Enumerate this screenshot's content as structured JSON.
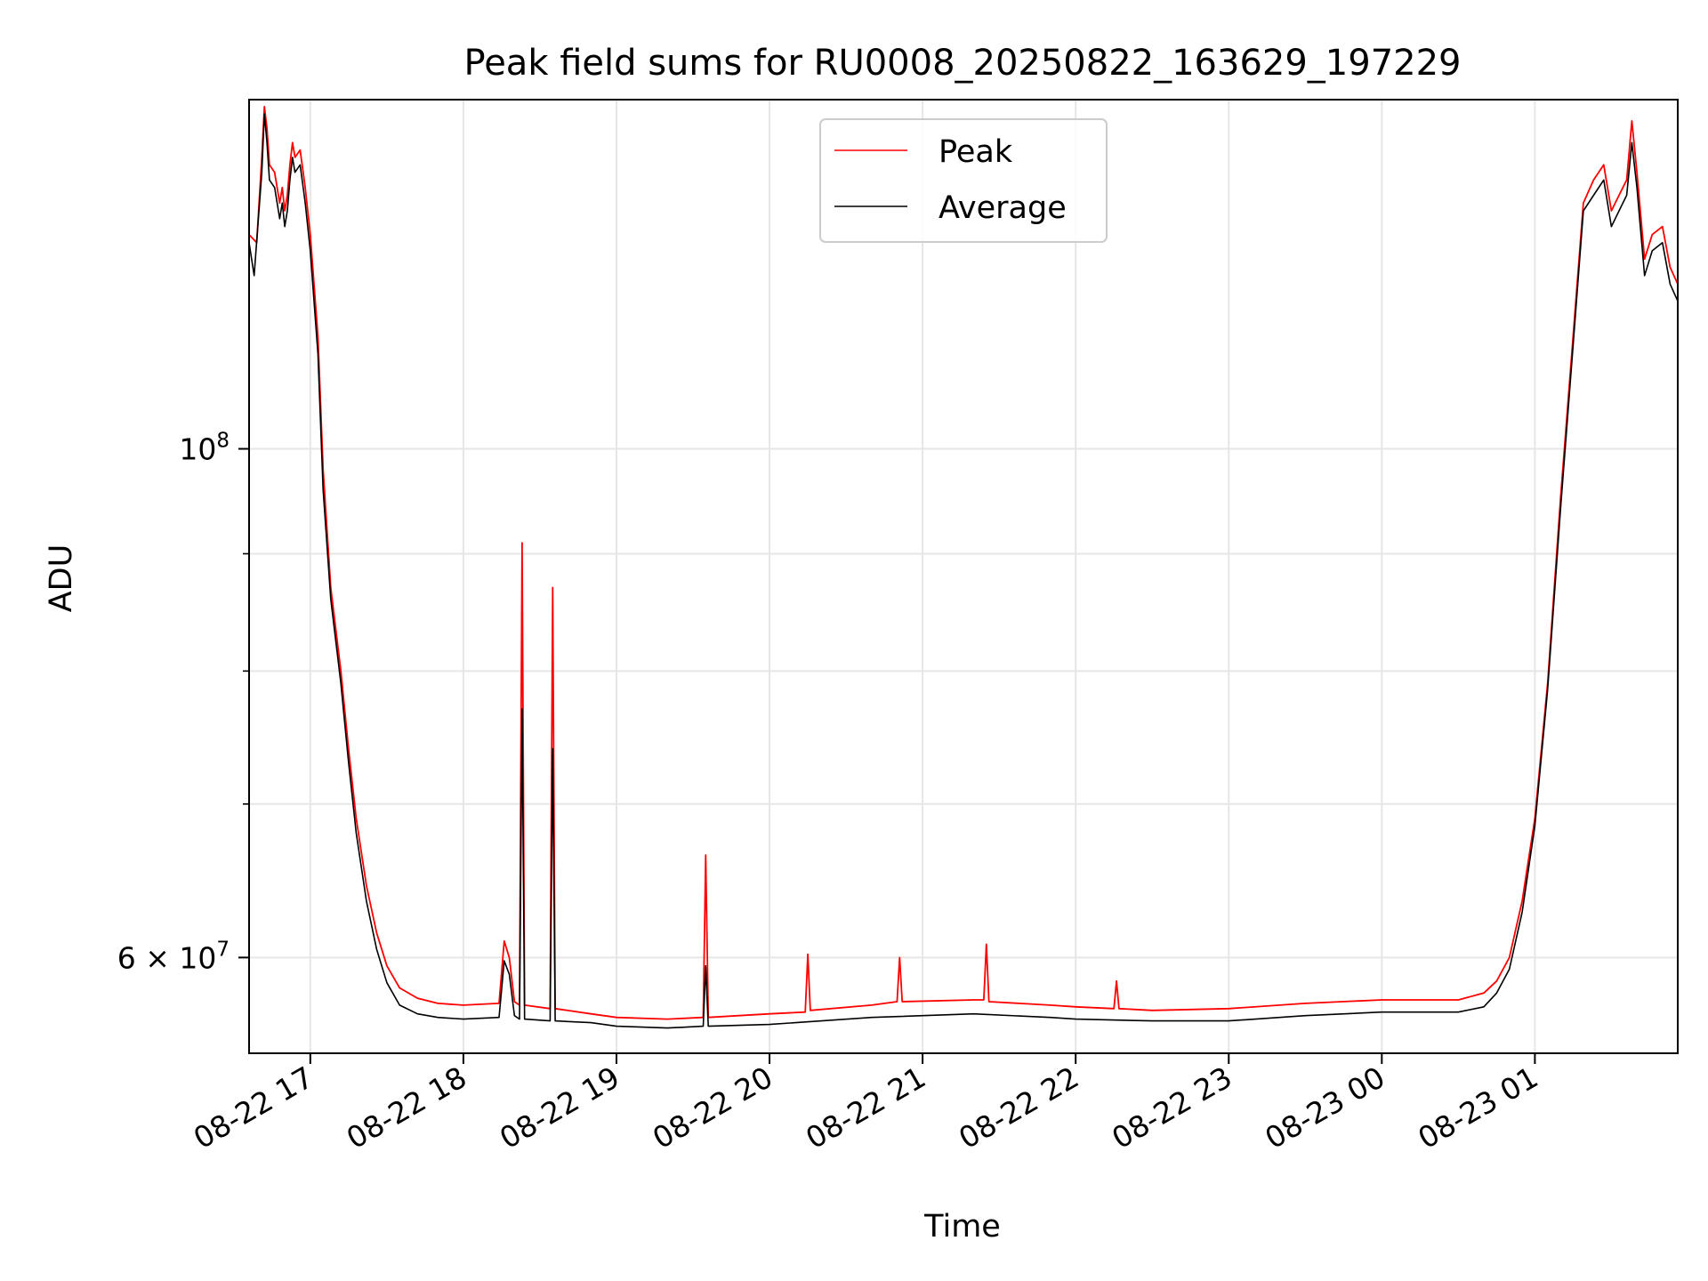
{
  "chart_data": {
    "type": "line",
    "title": "Peak field sums for RU0008_20250822_163629_197229",
    "xlabel": "Time",
    "ylabel": "ADU",
    "y_scale": "log",
    "x_range": [
      "2025-08-22 16:36",
      "2025-08-23 01:56"
    ],
    "ylim": [
      54500000,
      142000000
    ],
    "grid": true,
    "legend_position": "top-center",
    "x_ticks": [
      {
        "time": "2025-08-22 17:00",
        "label": "08-22 17"
      },
      {
        "time": "2025-08-22 18:00",
        "label": "08-22 18"
      },
      {
        "time": "2025-08-22 19:00",
        "label": "08-22 19"
      },
      {
        "time": "2025-08-22 20:00",
        "label": "08-22 20"
      },
      {
        "time": "2025-08-22 21:00",
        "label": "08-22 21"
      },
      {
        "time": "2025-08-22 22:00",
        "label": "08-22 22"
      },
      {
        "time": "2025-08-22 23:00",
        "label": "08-22 23"
      },
      {
        "time": "2025-08-23 00:00",
        "label": "08-23 00"
      },
      {
        "time": "2025-08-23 01:00",
        "label": "08-23 01"
      }
    ],
    "y_ticks": [
      {
        "value": 100000000,
        "base": "10",
        "exp": "8",
        "mantissa": ""
      },
      {
        "value": 60000000,
        "base": "10",
        "exp": "7",
        "mantissa": "6"
      }
    ],
    "y_minor_ticks": [
      70000000,
      80000000,
      90000000
    ],
    "series": [
      {
        "name": "Peak",
        "color": "#ff0000",
        "points": [
          [
            "2025-08-22 16:36",
            124000000
          ],
          [
            "2025-08-22 16:39",
            123000000
          ],
          [
            "2025-08-22 16:41",
            134000000
          ],
          [
            "2025-08-22 16:42",
            141000000
          ],
          [
            "2025-08-22 16:43",
            138000000
          ],
          [
            "2025-08-22 16:44",
            133000000
          ],
          [
            "2025-08-22 16:46",
            132000000
          ],
          [
            "2025-08-22 16:48",
            128000000
          ],
          [
            "2025-08-22 16:49",
            130000000
          ],
          [
            "2025-08-22 16:50",
            127000000
          ],
          [
            "2025-08-22 16:51",
            129000000
          ],
          [
            "2025-08-22 16:52",
            133000000
          ],
          [
            "2025-08-22 16:53",
            136000000
          ],
          [
            "2025-08-22 16:54",
            134000000
          ],
          [
            "2025-08-22 16:56",
            135000000
          ],
          [
            "2025-08-22 16:58",
            130000000
          ],
          [
            "2025-08-22 17:00",
            124000000
          ],
          [
            "2025-08-22 17:03",
            112000000
          ],
          [
            "2025-08-22 17:05",
            98000000
          ],
          [
            "2025-08-22 17:08",
            87000000
          ],
          [
            "2025-08-22 17:12",
            80000000
          ],
          [
            "2025-08-22 17:15",
            74000000
          ],
          [
            "2025-08-22 17:18",
            69000000
          ],
          [
            "2025-08-22 17:22",
            64500000
          ],
          [
            "2025-08-22 17:26",
            61500000
          ],
          [
            "2025-08-22 17:30",
            59500000
          ],
          [
            "2025-08-22 17:35",
            58200000
          ],
          [
            "2025-08-22 17:42",
            57600000
          ],
          [
            "2025-08-22 17:50",
            57300000
          ],
          [
            "2025-08-22 18:00",
            57200000
          ],
          [
            "2025-08-22 18:14",
            57300000
          ],
          [
            "2025-08-22 18:16",
            61000000
          ],
          [
            "2025-08-22 18:18",
            60000000
          ],
          [
            "2025-08-22 18:20",
            57400000
          ],
          [
            "2025-08-22 18:22",
            57200000
          ],
          [
            "2025-08-22 18:23",
            91000000
          ],
          [
            "2025-08-22 18:24",
            57200000
          ],
          [
            "2025-08-22 18:34",
            57000000
          ],
          [
            "2025-08-22 18:35",
            87000000
          ],
          [
            "2025-08-22 18:36",
            57000000
          ],
          [
            "2025-08-22 18:50",
            56700000
          ],
          [
            "2025-08-22 19:00",
            56500000
          ],
          [
            "2025-08-22 19:20",
            56400000
          ],
          [
            "2025-08-22 19:34",
            56500000
          ],
          [
            "2025-08-22 19:35",
            66500000
          ],
          [
            "2025-08-22 19:36",
            56500000
          ],
          [
            "2025-08-22 20:00",
            56700000
          ],
          [
            "2025-08-22 20:14",
            56800000
          ],
          [
            "2025-08-22 20:15",
            60200000
          ],
          [
            "2025-08-22 20:16",
            56900000
          ],
          [
            "2025-08-22 20:40",
            57200000
          ],
          [
            "2025-08-22 20:50",
            57400000
          ],
          [
            "2025-08-22 20:51",
            60000000
          ],
          [
            "2025-08-22 20:52",
            57400000
          ],
          [
            "2025-08-22 21:20",
            57500000
          ],
          [
            "2025-08-22 21:24",
            57500000
          ],
          [
            "2025-08-22 21:25",
            60800000
          ],
          [
            "2025-08-22 21:26",
            57400000
          ],
          [
            "2025-08-22 21:50",
            57200000
          ],
          [
            "2025-08-22 22:00",
            57100000
          ],
          [
            "2025-08-22 22:15",
            57000000
          ],
          [
            "2025-08-22 22:16",
            58600000
          ],
          [
            "2025-08-22 22:17",
            57000000
          ],
          [
            "2025-08-22 22:30",
            56900000
          ],
          [
            "2025-08-22 23:00",
            57000000
          ],
          [
            "2025-08-22 23:30",
            57300000
          ],
          [
            "2025-08-23 00:00",
            57500000
          ],
          [
            "2025-08-23 00:30",
            57500000
          ],
          [
            "2025-08-23 00:40",
            57900000
          ],
          [
            "2025-08-23 00:45",
            58600000
          ],
          [
            "2025-08-23 00:50",
            60000000
          ],
          [
            "2025-08-23 00:55",
            63500000
          ],
          [
            "2025-08-23 01:00",
            69000000
          ],
          [
            "2025-08-23 01:05",
            79000000
          ],
          [
            "2025-08-23 01:10",
            95000000
          ],
          [
            "2025-08-23 01:15",
            112000000
          ],
          [
            "2025-08-23 01:19",
            128000000
          ],
          [
            "2025-08-23 01:23",
            131000000
          ],
          [
            "2025-08-23 01:27",
            133000000
          ],
          [
            "2025-08-23 01:30",
            127000000
          ],
          [
            "2025-08-23 01:33",
            129000000
          ],
          [
            "2025-08-23 01:36",
            131000000
          ],
          [
            "2025-08-23 01:38",
            139000000
          ],
          [
            "2025-08-23 01:40",
            132000000
          ],
          [
            "2025-08-23 01:43",
            121000000
          ],
          [
            "2025-08-23 01:46",
            124000000
          ],
          [
            "2025-08-23 01:50",
            125000000
          ],
          [
            "2025-08-23 01:53",
            120000000
          ],
          [
            "2025-08-23 01:56",
            118000000
          ]
        ]
      },
      {
        "name": "Average",
        "color": "#000000",
        "points": [
          [
            "2025-08-22 16:36",
            123000000
          ],
          [
            "2025-08-22 16:38",
            119000000
          ],
          [
            "2025-08-22 16:41",
            132000000
          ],
          [
            "2025-08-22 16:42",
            140000000
          ],
          [
            "2025-08-22 16:43",
            136000000
          ],
          [
            "2025-08-22 16:44",
            131000000
          ],
          [
            "2025-08-22 16:46",
            130000000
          ],
          [
            "2025-08-22 16:48",
            126000000
          ],
          [
            "2025-08-22 16:49",
            128000000
          ],
          [
            "2025-08-22 16:50",
            125000000
          ],
          [
            "2025-08-22 16:51",
            127000000
          ],
          [
            "2025-08-22 16:52",
            131000000
          ],
          [
            "2025-08-22 16:53",
            134000000
          ],
          [
            "2025-08-22 16:54",
            132000000
          ],
          [
            "2025-08-22 16:56",
            133000000
          ],
          [
            "2025-08-22 16:58",
            128000000
          ],
          [
            "2025-08-22 17:00",
            122000000
          ],
          [
            "2025-08-22 17:03",
            110000000
          ],
          [
            "2025-08-22 17:05",
            96000000
          ],
          [
            "2025-08-22 17:08",
            86000000
          ],
          [
            "2025-08-22 17:12",
            79000000
          ],
          [
            "2025-08-22 17:15",
            73000000
          ],
          [
            "2025-08-22 17:18",
            68000000
          ],
          [
            "2025-08-22 17:22",
            63500000
          ],
          [
            "2025-08-22 17:26",
            60500000
          ],
          [
            "2025-08-22 17:30",
            58500000
          ],
          [
            "2025-08-22 17:35",
            57200000
          ],
          [
            "2025-08-22 17:42",
            56700000
          ],
          [
            "2025-08-22 17:50",
            56500000
          ],
          [
            "2025-08-22 18:00",
            56400000
          ],
          [
            "2025-08-22 18:14",
            56500000
          ],
          [
            "2025-08-22 18:16",
            59800000
          ],
          [
            "2025-08-22 18:18",
            59000000
          ],
          [
            "2025-08-22 18:20",
            56600000
          ],
          [
            "2025-08-22 18:22",
            56400000
          ],
          [
            "2025-08-22 18:23",
            77000000
          ],
          [
            "2025-08-22 18:24",
            56400000
          ],
          [
            "2025-08-22 18:34",
            56300000
          ],
          [
            "2025-08-22 18:35",
            74000000
          ],
          [
            "2025-08-22 18:36",
            56300000
          ],
          [
            "2025-08-22 18:50",
            56200000
          ],
          [
            "2025-08-22 19:00",
            56000000
          ],
          [
            "2025-08-22 19:20",
            55900000
          ],
          [
            "2025-08-22 19:34",
            56000000
          ],
          [
            "2025-08-22 19:35",
            59500000
          ],
          [
            "2025-08-22 19:36",
            56000000
          ],
          [
            "2025-08-22 20:00",
            56100000
          ],
          [
            "2025-08-22 20:40",
            56500000
          ],
          [
            "2025-08-22 21:20",
            56700000
          ],
          [
            "2025-08-22 21:50",
            56500000
          ],
          [
            "2025-08-22 22:00",
            56400000
          ],
          [
            "2025-08-22 22:30",
            56300000
          ],
          [
            "2025-08-22 23:00",
            56300000
          ],
          [
            "2025-08-22 23:30",
            56600000
          ],
          [
            "2025-08-23 00:00",
            56800000
          ],
          [
            "2025-08-23 00:30",
            56800000
          ],
          [
            "2025-08-23 00:40",
            57100000
          ],
          [
            "2025-08-23 00:45",
            57900000
          ],
          [
            "2025-08-23 00:50",
            59300000
          ],
          [
            "2025-08-23 00:55",
            62800000
          ],
          [
            "2025-08-23 01:00",
            68500000
          ],
          [
            "2025-08-23 01:05",
            78500000
          ],
          [
            "2025-08-23 01:10",
            94000000
          ],
          [
            "2025-08-23 01:15",
            111000000
          ],
          [
            "2025-08-23 01:19",
            127000000
          ],
          [
            "2025-08-23 01:23",
            129000000
          ],
          [
            "2025-08-23 01:27",
            131000000
          ],
          [
            "2025-08-23 01:30",
            125000000
          ],
          [
            "2025-08-23 01:33",
            127000000
          ],
          [
            "2025-08-23 01:36",
            129000000
          ],
          [
            "2025-08-23 01:38",
            136000000
          ],
          [
            "2025-08-23 01:40",
            130000000
          ],
          [
            "2025-08-23 01:43",
            119000000
          ],
          [
            "2025-08-23 01:46",
            122000000
          ],
          [
            "2025-08-23 01:50",
            123000000
          ],
          [
            "2025-08-23 01:53",
            118000000
          ],
          [
            "2025-08-23 01:56",
            116000000
          ]
        ]
      }
    ]
  },
  "style": {
    "grid_color": "#e6e6e6",
    "axis_color": "#000000",
    "legend_border": "#cccccc"
  }
}
